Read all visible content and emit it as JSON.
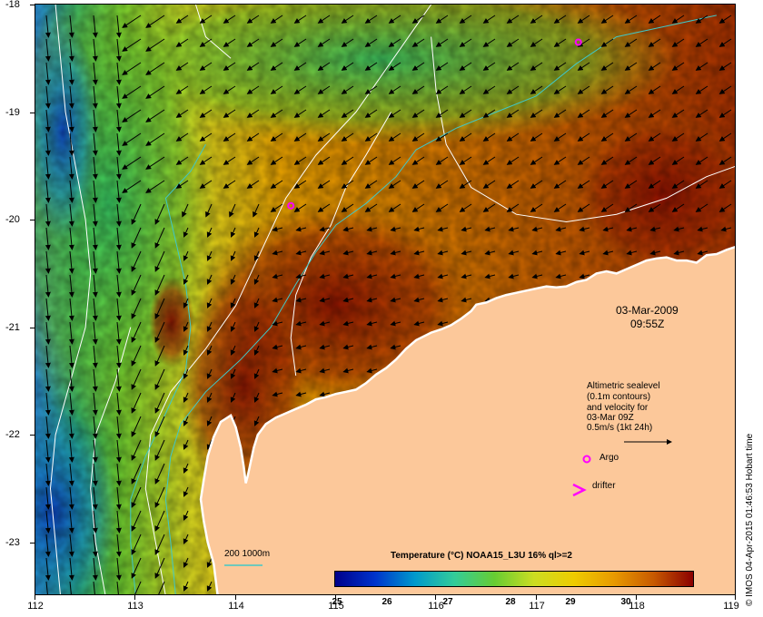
{
  "axes": {
    "lat_labels": [
      "-18",
      "-19",
      "-20",
      "-21",
      "-22",
      "-23"
    ],
    "lon_labels": [
      "112",
      "113",
      "114",
      "115",
      "116",
      "117",
      "118",
      "119"
    ]
  },
  "overlay": {
    "date": "03-Mar-2009",
    "time": "09:55Z",
    "legend_lines": [
      "Altimetric sealevel",
      "(0.1m contours)",
      "and velocity for",
      "03-Mar 09Z",
      "0.5m/s (1kt 24h)"
    ],
    "argo_label": "Argo",
    "drifter_label": "drifter",
    "isobath_label": "200  1000m",
    "stamp": "© IMOS 04-Apr-2015 01:46:53 Hobart time"
  },
  "colorbar": {
    "title": "Temperature (°C) NOAA15_L3U 16% ql>=2",
    "ticks": [
      "25",
      "26",
      "27",
      "28",
      "29",
      "30"
    ],
    "colors": [
      "#00008b",
      "#0033cc",
      "#0099cc",
      "#33cc99",
      "#66cc33",
      "#ccdd22",
      "#eecc00",
      "#e89a00",
      "#c85a00",
      "#8b0000"
    ]
  },
  "colors": {
    "land": "#fcc89a",
    "coastline": "#ffffff",
    "isobath": "#40c8c8",
    "contour": "#ffffff",
    "argo_marker": "#ff00ff",
    "drifter_marker": "#ff00ff"
  },
  "map": {
    "lon_range": [
      112,
      119
    ],
    "lat_range": [
      -23.5,
      -18
    ],
    "argo_floats": [
      [
        117.42,
        -18.35
      ],
      [
        114.55,
        -19.87
      ]
    ],
    "land_polygon": [
      [
        119,
        -20.25
      ],
      [
        118.9,
        -20.28
      ],
      [
        118.8,
        -20.32
      ],
      [
        118.7,
        -20.33
      ],
      [
        118.6,
        -20.4
      ],
      [
        118.5,
        -20.38
      ],
      [
        118.4,
        -20.38
      ],
      [
        118.3,
        -20.35
      ],
      [
        118.2,
        -20.36
      ],
      [
        118.1,
        -20.38
      ],
      [
        118,
        -20.42
      ],
      [
        117.9,
        -20.46
      ],
      [
        117.8,
        -20.5
      ],
      [
        117.7,
        -20.48
      ],
      [
        117.6,
        -20.5
      ],
      [
        117.5,
        -20.56
      ],
      [
        117.4,
        -20.58
      ],
      [
        117.3,
        -20.62
      ],
      [
        117.2,
        -20.63
      ],
      [
        117.1,
        -20.62
      ],
      [
        117,
        -20.64
      ],
      [
        116.9,
        -20.66
      ],
      [
        116.8,
        -20.68
      ],
      [
        116.7,
        -20.7
      ],
      [
        116.6,
        -20.73
      ],
      [
        116.5,
        -20.77
      ],
      [
        116.4,
        -20.79
      ],
      [
        116.35,
        -20.85
      ],
      [
        116.25,
        -20.92
      ],
      [
        116.15,
        -20.98
      ],
      [
        116.05,
        -21.02
      ],
      [
        115.95,
        -21.05
      ],
      [
        115.8,
        -21.12
      ],
      [
        115.7,
        -21.2
      ],
      [
        115.6,
        -21.3
      ],
      [
        115.5,
        -21.38
      ],
      [
        115.4,
        -21.44
      ],
      [
        115.3,
        -21.52
      ],
      [
        115.2,
        -21.58
      ],
      [
        115.1,
        -21.6
      ],
      [
        115,
        -21.62
      ],
      [
        114.9,
        -21.65
      ],
      [
        114.8,
        -21.67
      ],
      [
        114.7,
        -21.72
      ],
      [
        114.6,
        -21.76
      ],
      [
        114.5,
        -21.8
      ],
      [
        114.4,
        -21.84
      ],
      [
        114.3,
        -21.9
      ],
      [
        114.22,
        -22.0
      ],
      [
        114.18,
        -22.12
      ],
      [
        114.15,
        -22.25
      ],
      [
        114.12,
        -22.38
      ],
      [
        114.1,
        -22.45
      ],
      [
        114.08,
        -22.3
      ],
      [
        114.05,
        -22.12
      ],
      [
        114.0,
        -21.93
      ],
      [
        113.95,
        -21.82
      ],
      [
        113.85,
        -21.88
      ],
      [
        113.78,
        -22.02
      ],
      [
        113.72,
        -22.2
      ],
      [
        113.68,
        -22.42
      ],
      [
        113.65,
        -22.6
      ],
      [
        113.68,
        -22.8
      ],
      [
        113.72,
        -23.0
      ],
      [
        113.78,
        -23.2
      ],
      [
        113.82,
        -23.5
      ],
      [
        119,
        -23.5
      ]
    ],
    "isobaths": [
      [
        [
          113.4,
          -23.5
        ],
        [
          113.35,
          -23.0
        ],
        [
          113.3,
          -22.6
        ],
        [
          113.35,
          -22.2
        ],
        [
          113.45,
          -21.9
        ],
        [
          113.7,
          -21.6
        ],
        [
          114.05,
          -21.3
        ],
        [
          114.35,
          -21.0
        ],
        [
          114.6,
          -20.6
        ],
        [
          114.8,
          -20.3
        ],
        [
          115.0,
          -20.05
        ],
        [
          115.3,
          -19.85
        ],
        [
          115.6,
          -19.6
        ],
        [
          115.8,
          -19.35
        ],
        [
          116.2,
          -19.15
        ],
        [
          116.6,
          -19.0
        ],
        [
          117.0,
          -18.85
        ],
        [
          117.4,
          -18.55
        ],
        [
          117.8,
          -18.3
        ],
        [
          118.3,
          -18.2
        ],
        [
          118.8,
          -18.1
        ]
      ],
      [
        [
          113.0,
          -23.5
        ],
        [
          112.95,
          -23.0
        ],
        [
          112.95,
          -22.6
        ],
        [
          113.1,
          -22.2
        ],
        [
          113.3,
          -21.8
        ],
        [
          113.5,
          -21.4
        ],
        [
          113.55,
          -21.0
        ],
        [
          113.5,
          -20.6
        ],
        [
          113.4,
          -20.2
        ],
        [
          113.3,
          -19.8
        ],
        [
          113.55,
          -19.55
        ],
        [
          113.7,
          -19.3
        ]
      ]
    ],
    "contours": [
      [
        [
          112.2,
          -18.0
        ],
        [
          112.25,
          -18.5
        ],
        [
          112.3,
          -19.0
        ],
        [
          112.4,
          -19.5
        ],
        [
          112.5,
          -20.0
        ],
        [
          112.55,
          -20.5
        ],
        [
          112.5,
          -21.0
        ],
        [
          112.35,
          -21.5
        ],
        [
          112.2,
          -22.0
        ],
        [
          112.15,
          -22.5
        ],
        [
          112.2,
          -23.0
        ],
        [
          112.25,
          -23.5
        ]
      ],
      [
        [
          113.3,
          -23.5
        ],
        [
          113.2,
          -23.0
        ],
        [
          113.1,
          -22.5
        ],
        [
          113.15,
          -22.0
        ],
        [
          113.35,
          -21.6
        ],
        [
          113.7,
          -21.2
        ],
        [
          114.0,
          -20.8
        ],
        [
          114.25,
          -20.3
        ],
        [
          114.5,
          -19.8
        ],
        [
          114.8,
          -19.4
        ],
        [
          115.2,
          -19.0
        ],
        [
          115.5,
          -18.6
        ],
        [
          115.8,
          -18.2
        ],
        [
          115.95,
          -18.0
        ]
      ],
      [
        [
          115.95,
          -18.3
        ],
        [
          116.0,
          -18.8
        ],
        [
          116.1,
          -19.3
        ],
        [
          116.35,
          -19.7
        ],
        [
          116.8,
          -19.95
        ],
        [
          117.3,
          -20.02
        ],
        [
          117.8,
          -19.95
        ],
        [
          118.3,
          -19.8
        ],
        [
          118.7,
          -19.6
        ],
        [
          119.0,
          -19.5
        ]
      ],
      [
        [
          114.6,
          -21.45
        ],
        [
          114.55,
          -21.1
        ],
        [
          114.6,
          -20.7
        ],
        [
          114.75,
          -20.35
        ],
        [
          114.95,
          -20.05
        ],
        [
          115.1,
          -19.7
        ],
        [
          115.3,
          -19.4
        ],
        [
          115.55,
          -19.0
        ]
      ],
      [
        [
          112.7,
          -23.5
        ],
        [
          112.6,
          -23.0
        ],
        [
          112.55,
          -22.5
        ],
        [
          112.6,
          -22.0
        ],
        [
          112.8,
          -21.5
        ],
        [
          112.95,
          -21.0
        ]
      ],
      [
        [
          113.6,
          -18.0
        ],
        [
          113.7,
          -18.3
        ],
        [
          113.95,
          -18.5
        ]
      ]
    ]
  }
}
